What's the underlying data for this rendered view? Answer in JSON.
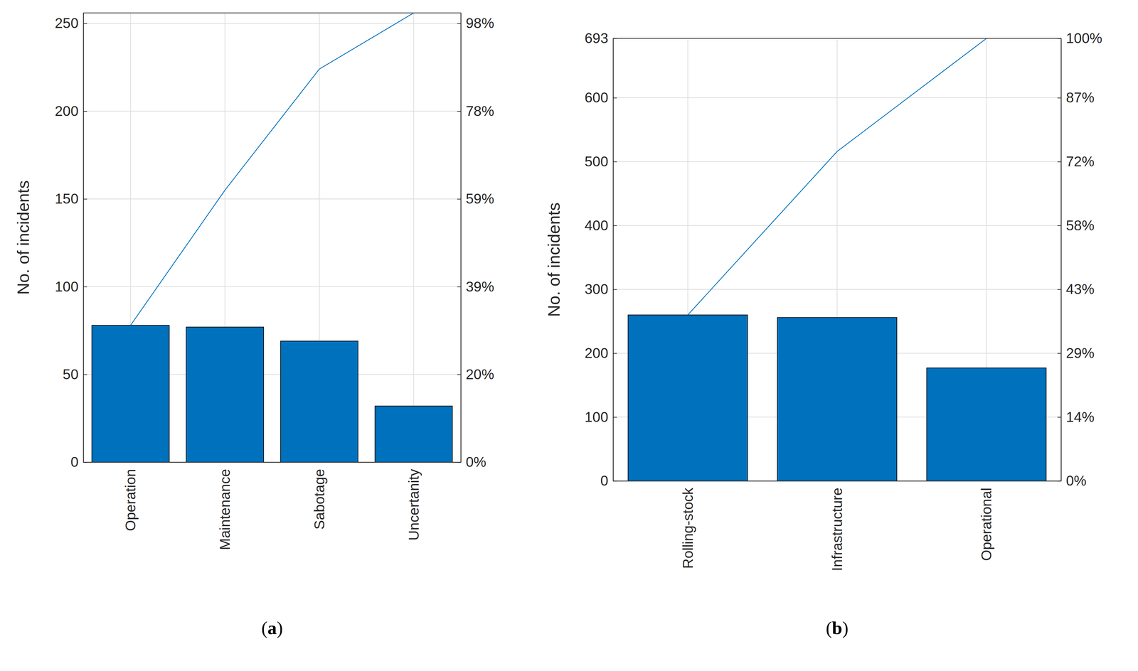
{
  "chart_data": [
    {
      "type": "pareto",
      "title": "(a)",
      "ylabel": "No. of incidents",
      "categories": [
        "Operation",
        "Maintenance",
        "Sabotage",
        "Uncertanity"
      ],
      "values": [
        78,
        77,
        69,
        32
      ],
      "color": "#0072bd",
      "ylim": [
        0,
        256
      ],
      "yticks": [
        0,
        50,
        100,
        150,
        200,
        250
      ],
      "y2lim": [
        0,
        100
      ],
      "y2ticks": [
        {
          "value": 0,
          "label": "0%"
        },
        {
          "value": 19.53,
          "label": "20%"
        },
        {
          "value": 39.06,
          "label": "39%"
        },
        {
          "value": 58.59,
          "label": "59%"
        },
        {
          "value": 78.13,
          "label": "78%"
        },
        {
          "value": 97.66,
          "label": "98%"
        }
      ],
      "grid": true
    },
    {
      "type": "pareto",
      "title": "(b)",
      "ylabel": "No. of incidents",
      "categories": [
        "Rolling-stock",
        "Infrastructure",
        "Operational"
      ],
      "values": [
        260,
        256,
        177
      ],
      "color": "#0072bd",
      "ylim": [
        0,
        693
      ],
      "yticks": [
        0,
        100,
        200,
        300,
        400,
        500,
        600,
        693
      ],
      "y2lim": [
        0,
        100
      ],
      "y2ticks": [
        {
          "value": 0,
          "label": "0%"
        },
        {
          "value": 14.43,
          "label": "14%"
        },
        {
          "value": 28.86,
          "label": "29%"
        },
        {
          "value": 43.29,
          "label": "43%"
        },
        {
          "value": 57.72,
          "label": "58%"
        },
        {
          "value": 72.15,
          "label": "72%"
        },
        {
          "value": 86.58,
          "label": "87%"
        },
        {
          "value": 100,
          "label": "100%"
        }
      ],
      "grid": true
    }
  ]
}
